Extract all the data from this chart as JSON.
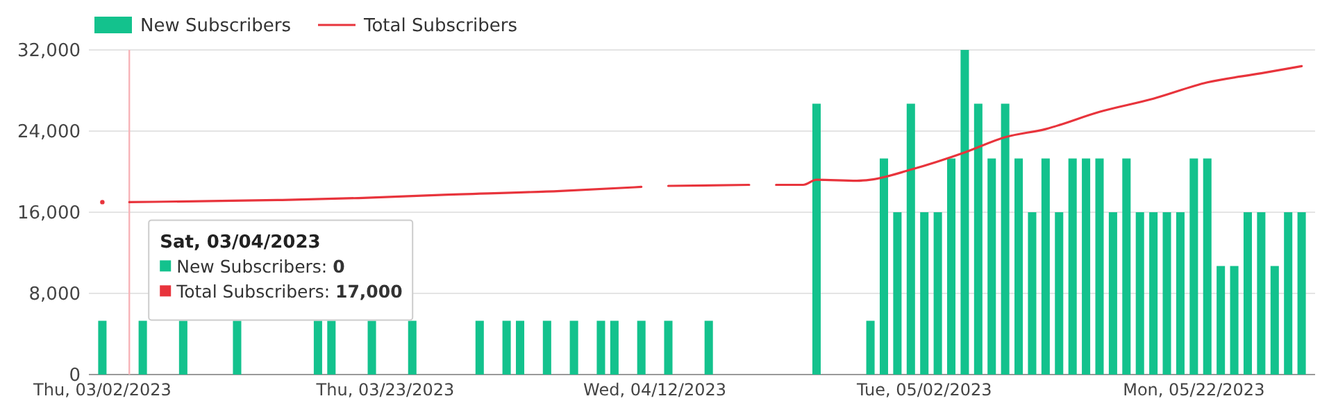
{
  "chart_data": {
    "type": "bar",
    "xlim": [
      "2023-03-01",
      "2023-05-31"
    ],
    "xticks": [
      {
        "value": "2023-03-02",
        "label": "Thu, 03/02/2023"
      },
      {
        "value": "2023-03-23",
        "label": "Thu, 03/23/2023"
      },
      {
        "value": "2023-04-12",
        "label": "Wed, 04/12/2023"
      },
      {
        "value": "2023-05-02",
        "label": "Tue, 05/02/2023"
      },
      {
        "value": "2023-05-22",
        "label": "Mon, 05/22/2023"
      }
    ],
    "ylim": [
      0,
      32000
    ],
    "yticks": [
      0,
      {
        "value": 8000,
        "label": "8,000"
      },
      {
        "value": 16000,
        "label": "16,000"
      },
      {
        "value": 24000,
        "label": "24,000"
      },
      {
        "value": 32000,
        "label": "32,000"
      }
    ],
    "grid": "y",
    "legend": "top left",
    "series": [
      {
        "name": "New Subscribers",
        "color": "#13c28d",
        "x": [
          "2023-03-02",
          "2023-03-05",
          "2023-03-08",
          "2023-03-12",
          "2023-03-18",
          "2023-03-19",
          "2023-03-22",
          "2023-03-25",
          "2023-03-30",
          "2023-04-01",
          "2023-04-02",
          "2023-04-04",
          "2023-04-06",
          "2023-04-08",
          "2023-04-09",
          "2023-04-11",
          "2023-04-13",
          "2023-04-16",
          "2023-04-24",
          "2023-04-28",
          "2023-04-29",
          "2023-04-30",
          "2023-05-01",
          "2023-05-02",
          "2023-05-03",
          "2023-05-04",
          "2023-05-05",
          "2023-05-06",
          "2023-05-07",
          "2023-05-08",
          "2023-05-09",
          "2023-05-10",
          "2023-05-11",
          "2023-05-12",
          "2023-05-13",
          "2023-05-14",
          "2023-05-15",
          "2023-05-16",
          "2023-05-17",
          "2023-05-18",
          "2023-05-19",
          "2023-05-20",
          "2023-05-21",
          "2023-05-22",
          "2023-05-23",
          "2023-05-24",
          "2023-05-25",
          "2023-05-26",
          "2023-05-27",
          "2023-05-28",
          "2023-05-29",
          "2023-05-30"
        ],
        "values": [
          5300,
          5300,
          5300,
          5300,
          5300,
          5300,
          5300,
          5300,
          5300,
          5300,
          5300,
          5300,
          5300,
          5300,
          5300,
          5300,
          5300,
          5300,
          26700,
          5300,
          21300,
          16000,
          26700,
          16000,
          16000,
          21300,
          32000,
          26700,
          21300,
          26700,
          21300,
          16000,
          21300,
          16000,
          21300,
          21300,
          21300,
          16000,
          21300,
          16000,
          16000,
          16000,
          16000,
          21300,
          21300,
          10700,
          10700,
          16000,
          16000,
          10700,
          16000,
          16000
        ]
      },
      {
        "name": "Total Subscribers",
        "type": "line",
        "color": "#e8343c",
        "x": [
          "2023-03-02",
          "2023-03-03",
          "2023-03-04",
          "2023-03-15",
          "2023-03-21",
          "2023-03-27",
          "2023-04-05",
          "2023-04-11",
          "2023-04-12",
          "2023-04-13",
          "2023-04-19",
          "2023-04-20",
          "2023-04-21",
          "2023-04-23",
          "2023-04-24",
          "2023-04-27",
          "2023-04-28",
          "2023-05-01",
          "2023-05-05",
          "2023-05-08",
          "2023-05-11",
          "2023-05-15",
          "2023-05-19",
          "2023-05-23",
          "2023-05-27",
          "2023-05-30"
        ],
        "values": [
          17000,
          null,
          17000,
          17200,
          17400,
          17700,
          18100,
          18500,
          null,
          18600,
          18700,
          null,
          18700,
          18700,
          19200,
          19100,
          19200,
          20200,
          21900,
          23400,
          24200,
          25900,
          27200,
          28800,
          29700,
          30400
        ]
      }
    ],
    "ref_lines": [
      {
        "axis": "x",
        "value": "2023-03-04",
        "color": "#f7b4b8"
      }
    ],
    "annotations": [
      {
        "text": "Sat, 03/04/2023",
        "x": "2023-03-04",
        "y": 17000
      },
      "New Subscribers: 0",
      "Total Subscribers: 17,000"
    ]
  }
}
